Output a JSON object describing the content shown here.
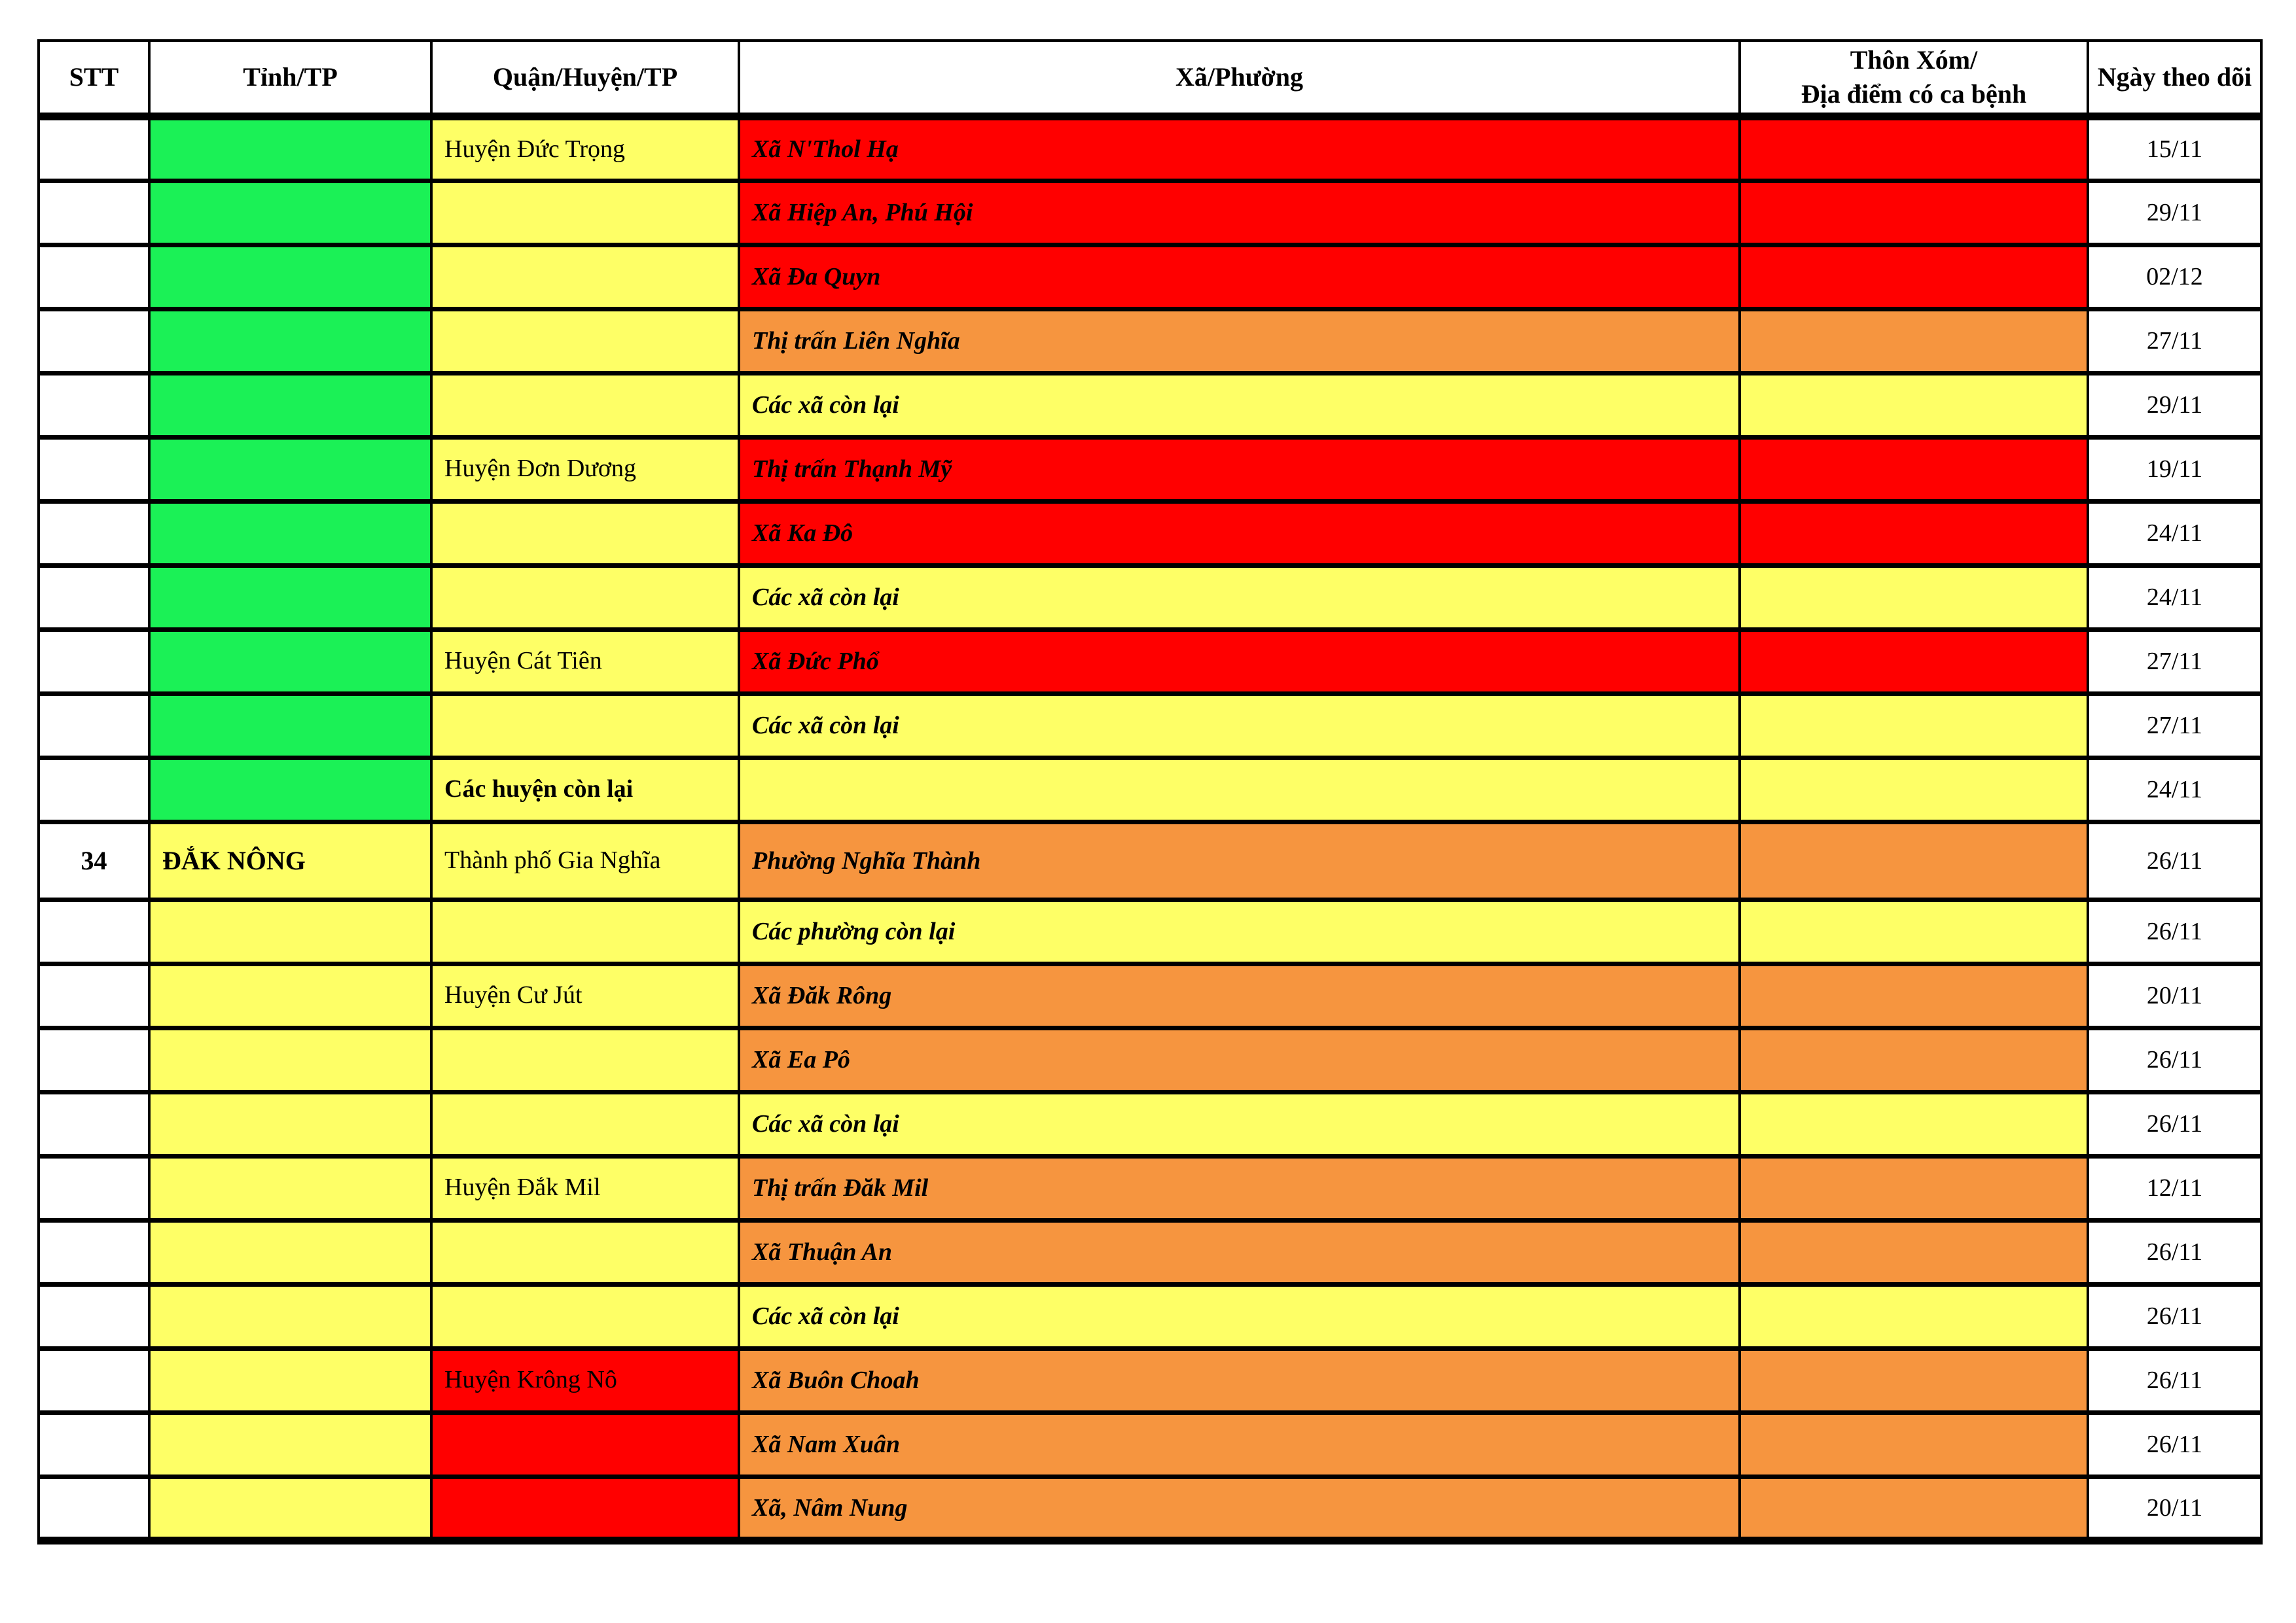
{
  "table": {
    "columns": [
      {
        "key": "stt",
        "label": "STT"
      },
      {
        "key": "tinh",
        "label": "Tỉnh/TP"
      },
      {
        "key": "huyen",
        "label": "Quận/Huyện/TP"
      },
      {
        "key": "xa",
        "label": "Xã/Phường"
      },
      {
        "key": "thon",
        "label": "Thôn Xóm/\nĐịa điểm có ca bệnh"
      },
      {
        "key": "ngay",
        "label": "Ngày theo dõi"
      }
    ],
    "colors": {
      "green": "#1BF156",
      "yellow": "#FEFF66",
      "orange": "#F6953F",
      "red": "#FF0000",
      "white": "#FFFFFF"
    },
    "rows": [
      {
        "stt": "",
        "tinh": "",
        "tinh_color": "green",
        "huyen": "Huyện Đức Trọng",
        "huyen_color": "yellow",
        "huyen_bold": false,
        "xa": "Xã N'Thol Hạ",
        "xa_color": "red",
        "thon": "",
        "thon_color": "red",
        "ngay": "15/11",
        "tall": false
      },
      {
        "stt": "",
        "tinh": "",
        "tinh_color": "green",
        "huyen": "",
        "huyen_color": "yellow",
        "huyen_bold": false,
        "xa": "Xã Hiệp An, Phú Hội",
        "xa_color": "red",
        "thon": "",
        "thon_color": "red",
        "ngay": "29/11",
        "tall": false
      },
      {
        "stt": "",
        "tinh": "",
        "tinh_color": "green",
        "huyen": "",
        "huyen_color": "yellow",
        "huyen_bold": false,
        "xa": "Xã Đa Quyn",
        "xa_color": "red",
        "thon": "",
        "thon_color": "red",
        "ngay": "02/12",
        "tall": false
      },
      {
        "stt": "",
        "tinh": "",
        "tinh_color": "green",
        "huyen": "",
        "huyen_color": "yellow",
        "huyen_bold": false,
        "xa": "Thị trấn Liên Nghĩa",
        "xa_color": "orange",
        "thon": "",
        "thon_color": "orange",
        "ngay": "27/11",
        "tall": false
      },
      {
        "stt": "",
        "tinh": "",
        "tinh_color": "green",
        "huyen": "",
        "huyen_color": "yellow",
        "huyen_bold": false,
        "xa": "Các xã còn lại",
        "xa_color": "yellow",
        "thon": "",
        "thon_color": "yellow",
        "ngay": "29/11",
        "tall": false
      },
      {
        "stt": "",
        "tinh": "",
        "tinh_color": "green",
        "huyen": "Huyện Đơn Dương",
        "huyen_color": "yellow",
        "huyen_bold": false,
        "xa": "Thị trấn Thạnh Mỹ",
        "xa_color": "red",
        "thon": "",
        "thon_color": "red",
        "ngay": "19/11",
        "tall": false
      },
      {
        "stt": "",
        "tinh": "",
        "tinh_color": "green",
        "huyen": "",
        "huyen_color": "yellow",
        "huyen_bold": false,
        "xa": "Xã Ka Đô",
        "xa_color": "red",
        "thon": "",
        "thon_color": "red",
        "ngay": "24/11",
        "tall": false
      },
      {
        "stt": "",
        "tinh": "",
        "tinh_color": "green",
        "huyen": "",
        "huyen_color": "yellow",
        "huyen_bold": false,
        "xa": "Các xã còn lại",
        "xa_color": "yellow",
        "thon": "",
        "thon_color": "yellow",
        "ngay": "24/11",
        "tall": false
      },
      {
        "stt": "",
        "tinh": "",
        "tinh_color": "green",
        "huyen": "Huyện Cát Tiên",
        "huyen_color": "yellow",
        "huyen_bold": false,
        "xa": "Xã Đức Phổ",
        "xa_color": "red",
        "thon": "",
        "thon_color": "red",
        "ngay": "27/11",
        "tall": false
      },
      {
        "stt": "",
        "tinh": "",
        "tinh_color": "green",
        "huyen": "",
        "huyen_color": "yellow",
        "huyen_bold": false,
        "xa": "Các xã còn lại",
        "xa_color": "yellow",
        "thon": "",
        "thon_color": "yellow",
        "ngay": "27/11",
        "tall": false
      },
      {
        "stt": "",
        "tinh": "",
        "tinh_color": "green",
        "huyen": "Các huyện còn lại",
        "huyen_color": "yellow",
        "huyen_bold": true,
        "xa": "",
        "xa_color": "yellow",
        "thon": "",
        "thon_color": "yellow",
        "ngay": "24/11",
        "tall": false
      },
      {
        "stt": "34",
        "tinh": "ĐẮK NÔNG",
        "tinh_color": "yellow",
        "huyen": "Thành phố Gia Nghĩa",
        "huyen_color": "yellow",
        "huyen_bold": false,
        "xa": "Phường Nghĩa Thành",
        "xa_color": "orange",
        "thon": "",
        "thon_color": "orange",
        "ngay": "26/11",
        "tall": true
      },
      {
        "stt": "",
        "tinh": "",
        "tinh_color": "yellow",
        "huyen": "",
        "huyen_color": "yellow",
        "huyen_bold": false,
        "xa": "Các phường còn lại",
        "xa_color": "yellow",
        "thon": "",
        "thon_color": "yellow",
        "ngay": "26/11",
        "tall": false
      },
      {
        "stt": "",
        "tinh": "",
        "tinh_color": "yellow",
        "huyen": "Huyện Cư Jút",
        "huyen_color": "yellow",
        "huyen_bold": false,
        "xa": "Xã Đăk Rông",
        "xa_color": "orange",
        "thon": "",
        "thon_color": "orange",
        "ngay": "20/11",
        "tall": false
      },
      {
        "stt": "",
        "tinh": "",
        "tinh_color": "yellow",
        "huyen": "",
        "huyen_color": "yellow",
        "huyen_bold": false,
        "xa": "Xã Ea Pô",
        "xa_color": "orange",
        "thon": "",
        "thon_color": "orange",
        "ngay": "26/11",
        "tall": false
      },
      {
        "stt": "",
        "tinh": "",
        "tinh_color": "yellow",
        "huyen": "",
        "huyen_color": "yellow",
        "huyen_bold": false,
        "xa": "Các xã còn lại",
        "xa_color": "yellow",
        "thon": "",
        "thon_color": "yellow",
        "ngay": "26/11",
        "tall": false
      },
      {
        "stt": "",
        "tinh": "",
        "tinh_color": "yellow",
        "huyen": "Huyện Đắk Mil",
        "huyen_color": "yellow",
        "huyen_bold": false,
        "xa": "Thị trấn Đăk Mil",
        "xa_color": "orange",
        "thon": "",
        "thon_color": "orange",
        "ngay": "12/11",
        "tall": false
      },
      {
        "stt": "",
        "tinh": "",
        "tinh_color": "yellow",
        "huyen": "",
        "huyen_color": "yellow",
        "huyen_bold": false,
        "xa": "Xã Thuận An",
        "xa_color": "orange",
        "thon": "",
        "thon_color": "orange",
        "ngay": "26/11",
        "tall": false
      },
      {
        "stt": "",
        "tinh": "",
        "tinh_color": "yellow",
        "huyen": "",
        "huyen_color": "yellow",
        "huyen_bold": false,
        "xa": "Các xã còn lại",
        "xa_color": "yellow",
        "thon": "",
        "thon_color": "yellow",
        "ngay": "26/11",
        "tall": false
      },
      {
        "stt": "",
        "tinh": "",
        "tinh_color": "yellow",
        "huyen": "Huyện Krông Nô",
        "huyen_color": "red",
        "huyen_bold": false,
        "xa": "Xã Buôn Choah",
        "xa_color": "orange",
        "thon": "",
        "thon_color": "orange",
        "ngay": "26/11",
        "tall": false
      },
      {
        "stt": "",
        "tinh": "",
        "tinh_color": "yellow",
        "huyen": "",
        "huyen_color": "red",
        "huyen_bold": false,
        "xa": "Xã Nam Xuân",
        "xa_color": "orange",
        "thon": "",
        "thon_color": "orange",
        "ngay": "26/11",
        "tall": false
      },
      {
        "stt": "",
        "tinh": "",
        "tinh_color": "yellow",
        "huyen": "",
        "huyen_color": "red",
        "huyen_bold": false,
        "xa": "Xã, Nâm Nung",
        "xa_color": "orange",
        "thon": "",
        "thon_color": "orange",
        "ngay": "20/11",
        "tall": false
      }
    ]
  }
}
